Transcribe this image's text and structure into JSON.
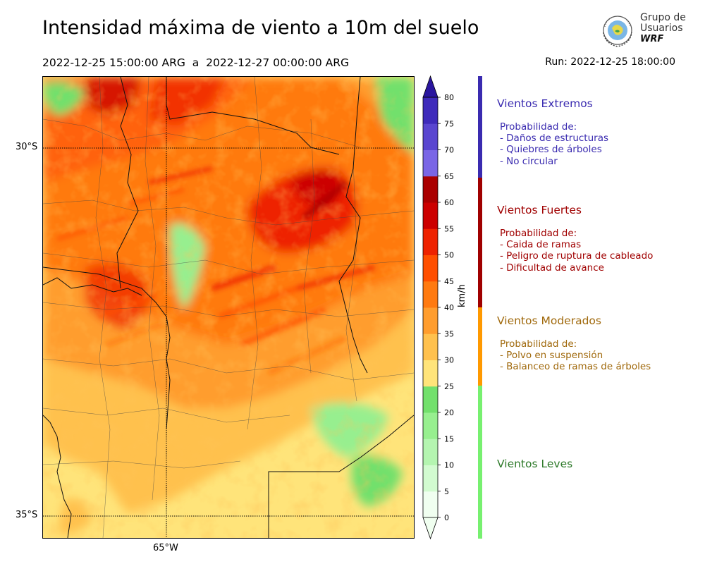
{
  "header": {
    "title": "Intensidad máxima de viento a 10m del suelo",
    "period": "2022-12-25 15:00:00 ARG  a  2022-12-27 00:00:00 ARG",
    "run": "Run: 2022-12-25 18:00:00"
  },
  "logo": {
    "line1": "Grupo de",
    "line2": "Usuarios",
    "line3": "WRF"
  },
  "map": {
    "lat_labels": [
      "30°S",
      "35°S"
    ],
    "lon_labels": [
      "65°W"
    ]
  },
  "colorbar": {
    "unit": "km/h",
    "ticks": [
      "0",
      "5",
      "10",
      "15",
      "20",
      "25",
      "30",
      "35",
      "40",
      "45",
      "50",
      "55",
      "60",
      "65",
      "70",
      "75",
      "80"
    ],
    "colors": [
      "#f0fff0",
      "#d2fbd0",
      "#b4f5b0",
      "#97ef8f",
      "#72e06c",
      "#ffe47a",
      "#ffc14e",
      "#ff9d2e",
      "#ff7a10",
      "#ff4f00",
      "#ee2200",
      "#cc0000",
      "#aa0000",
      "#7a66e6",
      "#5a46d0",
      "#3f2bbb",
      "#2a169f"
    ]
  },
  "legend": {
    "categories": [
      {
        "name": "Vientos Extremos",
        "color": "#3a2bb0",
        "lines": [
          "Probabilidad de:",
          "- Daños de estructuras",
          "- Quiebres de árboles",
          "- No circular"
        ]
      },
      {
        "name": "Vientos Fuertes",
        "color": "#a00000",
        "lines": [
          "Probabilidad de:",
          "- Caida de ramas",
          "- Peligro de ruptura de cableado",
          "- Dificultad de avance"
        ]
      },
      {
        "name": "Vientos Moderados",
        "color": "#a0690c",
        "lines": [
          "Probabilidad de:",
          "- Polvo en suspensión",
          "- Balanceo de ramas de árboles"
        ]
      },
      {
        "name": "Vientos Leves",
        "color": "#2e7a2a",
        "lines": []
      }
    ],
    "bar_colors": [
      "#3a2bb0",
      "#a00000",
      "#ff9900",
      "#77f070"
    ]
  }
}
